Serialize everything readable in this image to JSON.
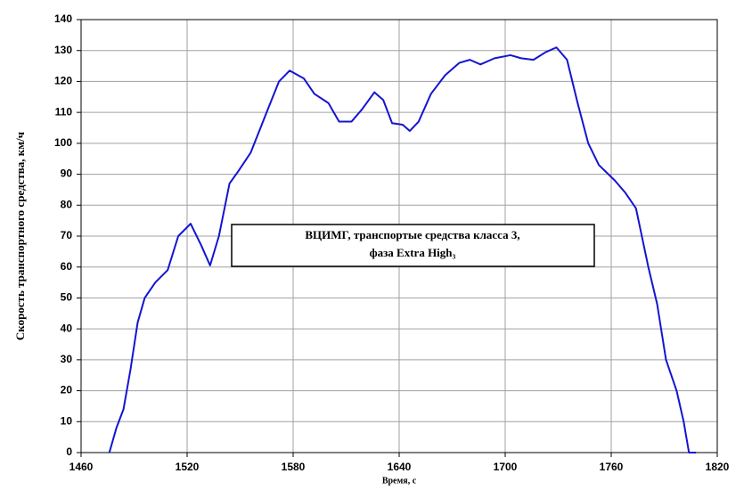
{
  "chart_data": {
    "type": "line",
    "xlabel": "Время, с",
    "ylabel": "Скорость транспортного средства, км/ч",
    "annotation": [
      "ВЦИМГ, транспортые средства класса 3,",
      "фаза Extra High₃"
    ],
    "xlim": [
      1460,
      1820
    ],
    "xticks": [
      1460,
      1520,
      1580,
      1640,
      1700,
      1760,
      1820
    ],
    "ylim": [
      0,
      140
    ],
    "yticks": [
      0,
      10,
      20,
      30,
      40,
      50,
      60,
      70,
      80,
      90,
      100,
      110,
      120,
      130,
      140
    ],
    "grid": true,
    "series": [
      {
        "color": "#1414d2",
        "x": [
          1476,
          1480,
          1484,
          1488,
          1492,
          1496,
          1502,
          1509,
          1515,
          1522,
          1528,
          1533,
          1538,
          1544,
          1549,
          1556,
          1565,
          1572,
          1578,
          1586,
          1592,
          1600,
          1606,
          1613,
          1619,
          1626,
          1631,
          1636,
          1642,
          1646,
          1651,
          1658,
          1666,
          1674,
          1680,
          1686,
          1694,
          1703,
          1709,
          1716,
          1723,
          1729,
          1735,
          1741,
          1747,
          1753,
          1762,
          1768,
          1774,
          1781,
          1786,
          1791,
          1797,
          1801,
          1804,
          1808
        ],
        "values": [
          0,
          8,
          14,
          27,
          42,
          50,
          55,
          59,
          70,
          74,
          67,
          60.5,
          70,
          87,
          91,
          97,
          110,
          120,
          123.5,
          121,
          116,
          113,
          107,
          107,
          111,
          116.5,
          114,
          106.5,
          106,
          104,
          107,
          116,
          122,
          126,
          127,
          125.5,
          127.5,
          128.5,
          127.5,
          127,
          129.5,
          131,
          127,
          113,
          100,
          93,
          88,
          84,
          79,
          60,
          48,
          30,
          20,
          10,
          0,
          0
        ]
      }
    ]
  }
}
